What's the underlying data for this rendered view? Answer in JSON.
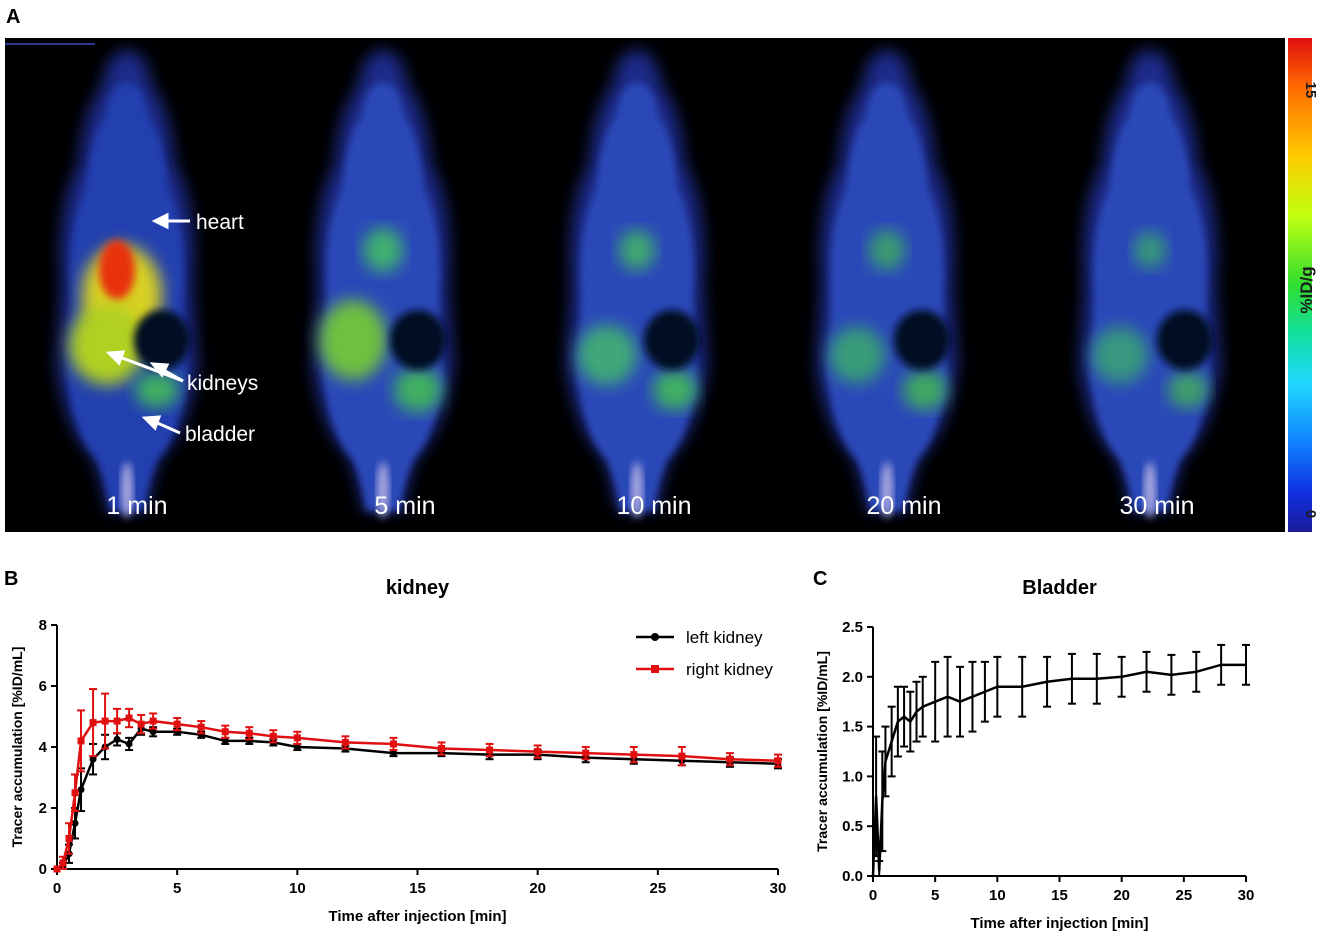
{
  "panel_a": {
    "letter": "A",
    "time_labels": [
      "1 min",
      "5 min",
      "10 min",
      "20 min",
      "30 min"
    ],
    "organ_labels": {
      "heart": "heart",
      "kidneys": "kidneys",
      "bladder": "bladder"
    },
    "colorbar": {
      "unit": "%ID/g",
      "max": "15",
      "min": "0"
    }
  },
  "panel_b": {
    "letter": "B"
  },
  "panel_c": {
    "letter": "C"
  },
  "chart_data": [
    {
      "type": "line",
      "title": "kidney",
      "xlabel": "Time after injection [min]",
      "ylabel": "Tracer accumulation [%ID/mL]",
      "xlim": [
        0,
        30
      ],
      "ylim": [
        0,
        8
      ],
      "xticks": [
        0,
        5,
        10,
        15,
        20,
        25,
        30
      ],
      "yticks": [
        0,
        2,
        4,
        6,
        8
      ],
      "legend_position": "top-right",
      "series": [
        {
          "name": "left kidney",
          "color": "#000000",
          "marker": "circle",
          "x": [
            0,
            0.25,
            0.5,
            0.75,
            1,
            1.5,
            2,
            2.5,
            3,
            3.5,
            4,
            5,
            6,
            7,
            8,
            9,
            10,
            12,
            14,
            16,
            18,
            20,
            22,
            24,
            26,
            28,
            30
          ],
          "y": [
            0,
            0.1,
            0.5,
            1.5,
            2.6,
            3.6,
            4.0,
            4.25,
            4.1,
            4.6,
            4.5,
            4.5,
            4.4,
            4.2,
            4.2,
            4.15,
            4.0,
            3.95,
            3.8,
            3.8,
            3.75,
            3.75,
            3.65,
            3.6,
            3.55,
            3.5,
            3.45
          ],
          "err": [
            0,
            0.1,
            0.3,
            0.5,
            0.7,
            0.5,
            0.4,
            0.2,
            0.2,
            0.2,
            0.15,
            0.1,
            0.1,
            0.1,
            0.1,
            0.1,
            0.1,
            0.1,
            0.1,
            0.1,
            0.15,
            0.15,
            0.15,
            0.15,
            0.15,
            0.15,
            0.15
          ]
        },
        {
          "name": "right kidney",
          "color": "#e01010",
          "marker": "square",
          "x": [
            0,
            0.25,
            0.5,
            0.75,
            1,
            1.5,
            2,
            2.5,
            3,
            3.5,
            4,
            5,
            6,
            7,
            8,
            9,
            10,
            12,
            14,
            16,
            18,
            20,
            22,
            24,
            26,
            28,
            30
          ],
          "y": [
            0,
            0.2,
            1.0,
            2.5,
            4.2,
            4.8,
            4.85,
            4.85,
            4.95,
            4.75,
            4.85,
            4.75,
            4.65,
            4.5,
            4.45,
            4.35,
            4.3,
            4.15,
            4.1,
            3.95,
            3.9,
            3.85,
            3.8,
            3.75,
            3.7,
            3.6,
            3.55
          ],
          "err": [
            0,
            0.2,
            0.5,
            0.6,
            1.0,
            1.1,
            0.9,
            0.4,
            0.3,
            0.3,
            0.25,
            0.2,
            0.2,
            0.2,
            0.2,
            0.2,
            0.2,
            0.2,
            0.2,
            0.2,
            0.2,
            0.2,
            0.2,
            0.25,
            0.3,
            0.2,
            0.2
          ]
        }
      ]
    },
    {
      "type": "line",
      "title": "Bladder",
      "xlabel": "Time after injection [min]",
      "ylabel": "Tracer accumulation [%ID/mL]",
      "xlim": [
        0,
        30
      ],
      "ylim": [
        0,
        2.5
      ],
      "xticks": [
        0,
        5,
        10,
        15,
        20,
        25,
        30
      ],
      "yticks": [
        0.0,
        0.5,
        1.0,
        1.5,
        2.0,
        2.5
      ],
      "series": [
        {
          "name": "Bladder",
          "color": "#000000",
          "x": [
            0,
            0.25,
            0.5,
            0.75,
            1,
            1.5,
            2,
            2.5,
            3,
            3.5,
            4,
            5,
            6,
            7,
            8,
            9,
            10,
            12,
            14,
            16,
            18,
            20,
            22,
            24,
            26,
            28,
            30
          ],
          "y": [
            0,
            0.8,
            0.05,
            0.75,
            1.15,
            1.35,
            1.55,
            1.6,
            1.55,
            1.65,
            1.7,
            1.75,
            1.8,
            1.75,
            1.8,
            1.85,
            1.9,
            1.9,
            1.95,
            1.98,
            1.98,
            2.0,
            2.05,
            2.02,
            2.05,
            2.12,
            2.12
          ],
          "err": [
            0,
            0.6,
            0.1,
            0.5,
            0.35,
            0.35,
            0.35,
            0.3,
            0.3,
            0.3,
            0.3,
            0.4,
            0.4,
            0.35,
            0.35,
            0.3,
            0.3,
            0.3,
            0.25,
            0.25,
            0.25,
            0.2,
            0.2,
            0.2,
            0.2,
            0.2,
            0.2
          ]
        }
      ]
    }
  ]
}
